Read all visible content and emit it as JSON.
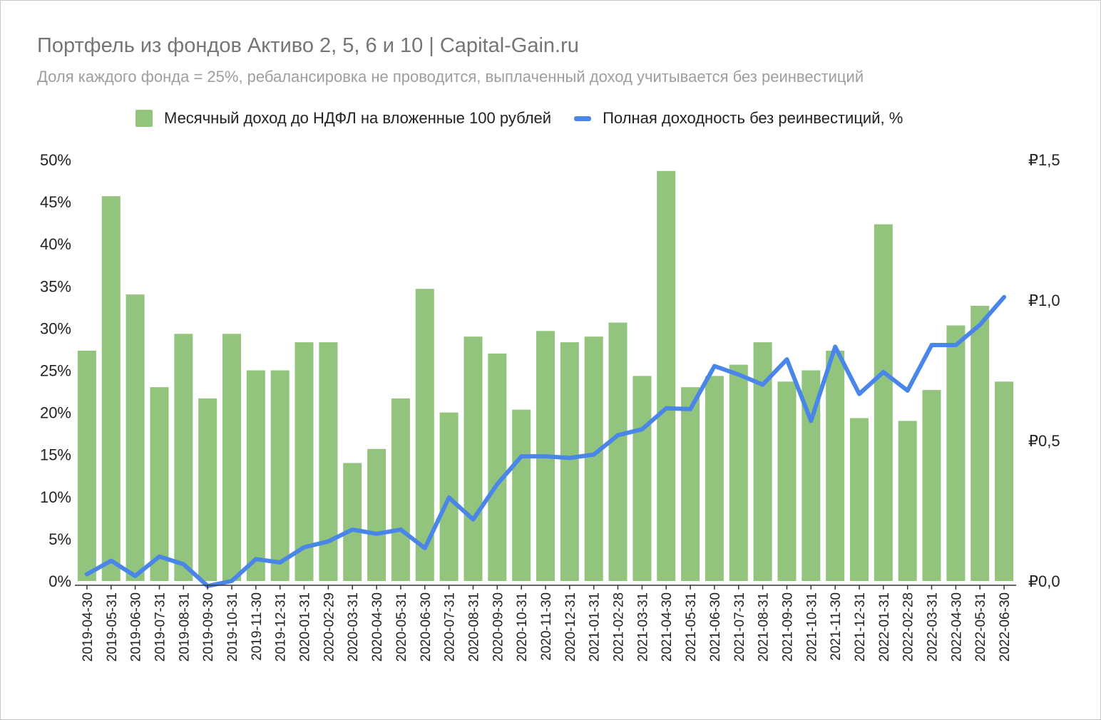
{
  "chart_data": {
    "type": "bar",
    "title": "Портфель из фондов Активо 2, 5, 6 и 10 | Capital-Gain.ru",
    "subtitle": "Доля каждого фонда = 25%, ребалансировка не проводится, выплаченный доход учитывается без реинвестиций",
    "legend_position": "top",
    "grid": false,
    "categories": [
      "2019-04-30",
      "2019-05-31",
      "2019-06-30",
      "2019-07-31",
      "2019-08-31",
      "2019-09-30",
      "2019-10-31",
      "2019-11-30",
      "2019-12-31",
      "2020-01-31",
      "2020-02-29",
      "2020-03-31",
      "2020-04-30",
      "2020-05-31",
      "2020-06-30",
      "2020-07-31",
      "2020-08-31",
      "2020-09-30",
      "2020-10-31",
      "2020-11-30",
      "2020-12-31",
      "2021-01-31",
      "2021-02-28",
      "2021-03-31",
      "2021-04-30",
      "2021-05-31",
      "2021-06-30",
      "2021-07-31",
      "2021-08-31",
      "2021-09-30",
      "2021-10-31",
      "2021-11-30",
      "2021-12-31",
      "2022-01-31",
      "2022-02-28",
      "2022-03-31",
      "2022-04-30",
      "2022-05-31",
      "2022-06-30"
    ],
    "series": [
      {
        "name": "Месячный доход до НДФЛ на вложенные 100 рублей",
        "type": "bar",
        "axis": "right",
        "color": "#93c47d",
        "values": [
          0.82,
          1.37,
          1.02,
          0.69,
          0.88,
          0.65,
          0.88,
          0.75,
          0.75,
          0.85,
          0.85,
          0.42,
          0.47,
          0.65,
          1.04,
          0.6,
          0.87,
          0.81,
          0.61,
          0.89,
          0.85,
          0.87,
          0.92,
          0.73,
          1.46,
          0.69,
          0.73,
          0.77,
          0.85,
          0.71,
          0.75,
          0.82,
          0.58,
          1.27,
          0.57,
          0.68,
          0.91,
          0.98,
          0.71
        ]
      },
      {
        "name": "Полная доходность без реинвестиций, %",
        "type": "line",
        "axis": "left",
        "color": "#4a86e8",
        "values": [
          0.8,
          2.4,
          0.6,
          2.9,
          2.0,
          -0.6,
          0.0,
          2.6,
          2.2,
          4.0,
          4.7,
          6.1,
          5.6,
          6.1,
          3.9,
          9.9,
          7.3,
          11.5,
          14.8,
          14.8,
          14.6,
          15.0,
          17.3,
          18.0,
          20.5,
          20.4,
          25.5,
          24.5,
          23.3,
          26.3,
          19.0,
          27.8,
          22.2,
          24.8,
          22.6,
          28.0,
          28.0,
          30.4,
          33.7
        ]
      }
    ],
    "y_left": {
      "ylim": [
        0,
        50
      ],
      "ticks": [
        "0%",
        "5%",
        "10%",
        "15%",
        "20%",
        "25%",
        "30%",
        "35%",
        "40%",
        "45%",
        "50%"
      ]
    },
    "y_right": {
      "ylim": [
        0,
        1.5
      ],
      "ticks": [
        "₽0,0",
        "₽0,5",
        "₽1,0",
        "₽1,5"
      ]
    }
  }
}
